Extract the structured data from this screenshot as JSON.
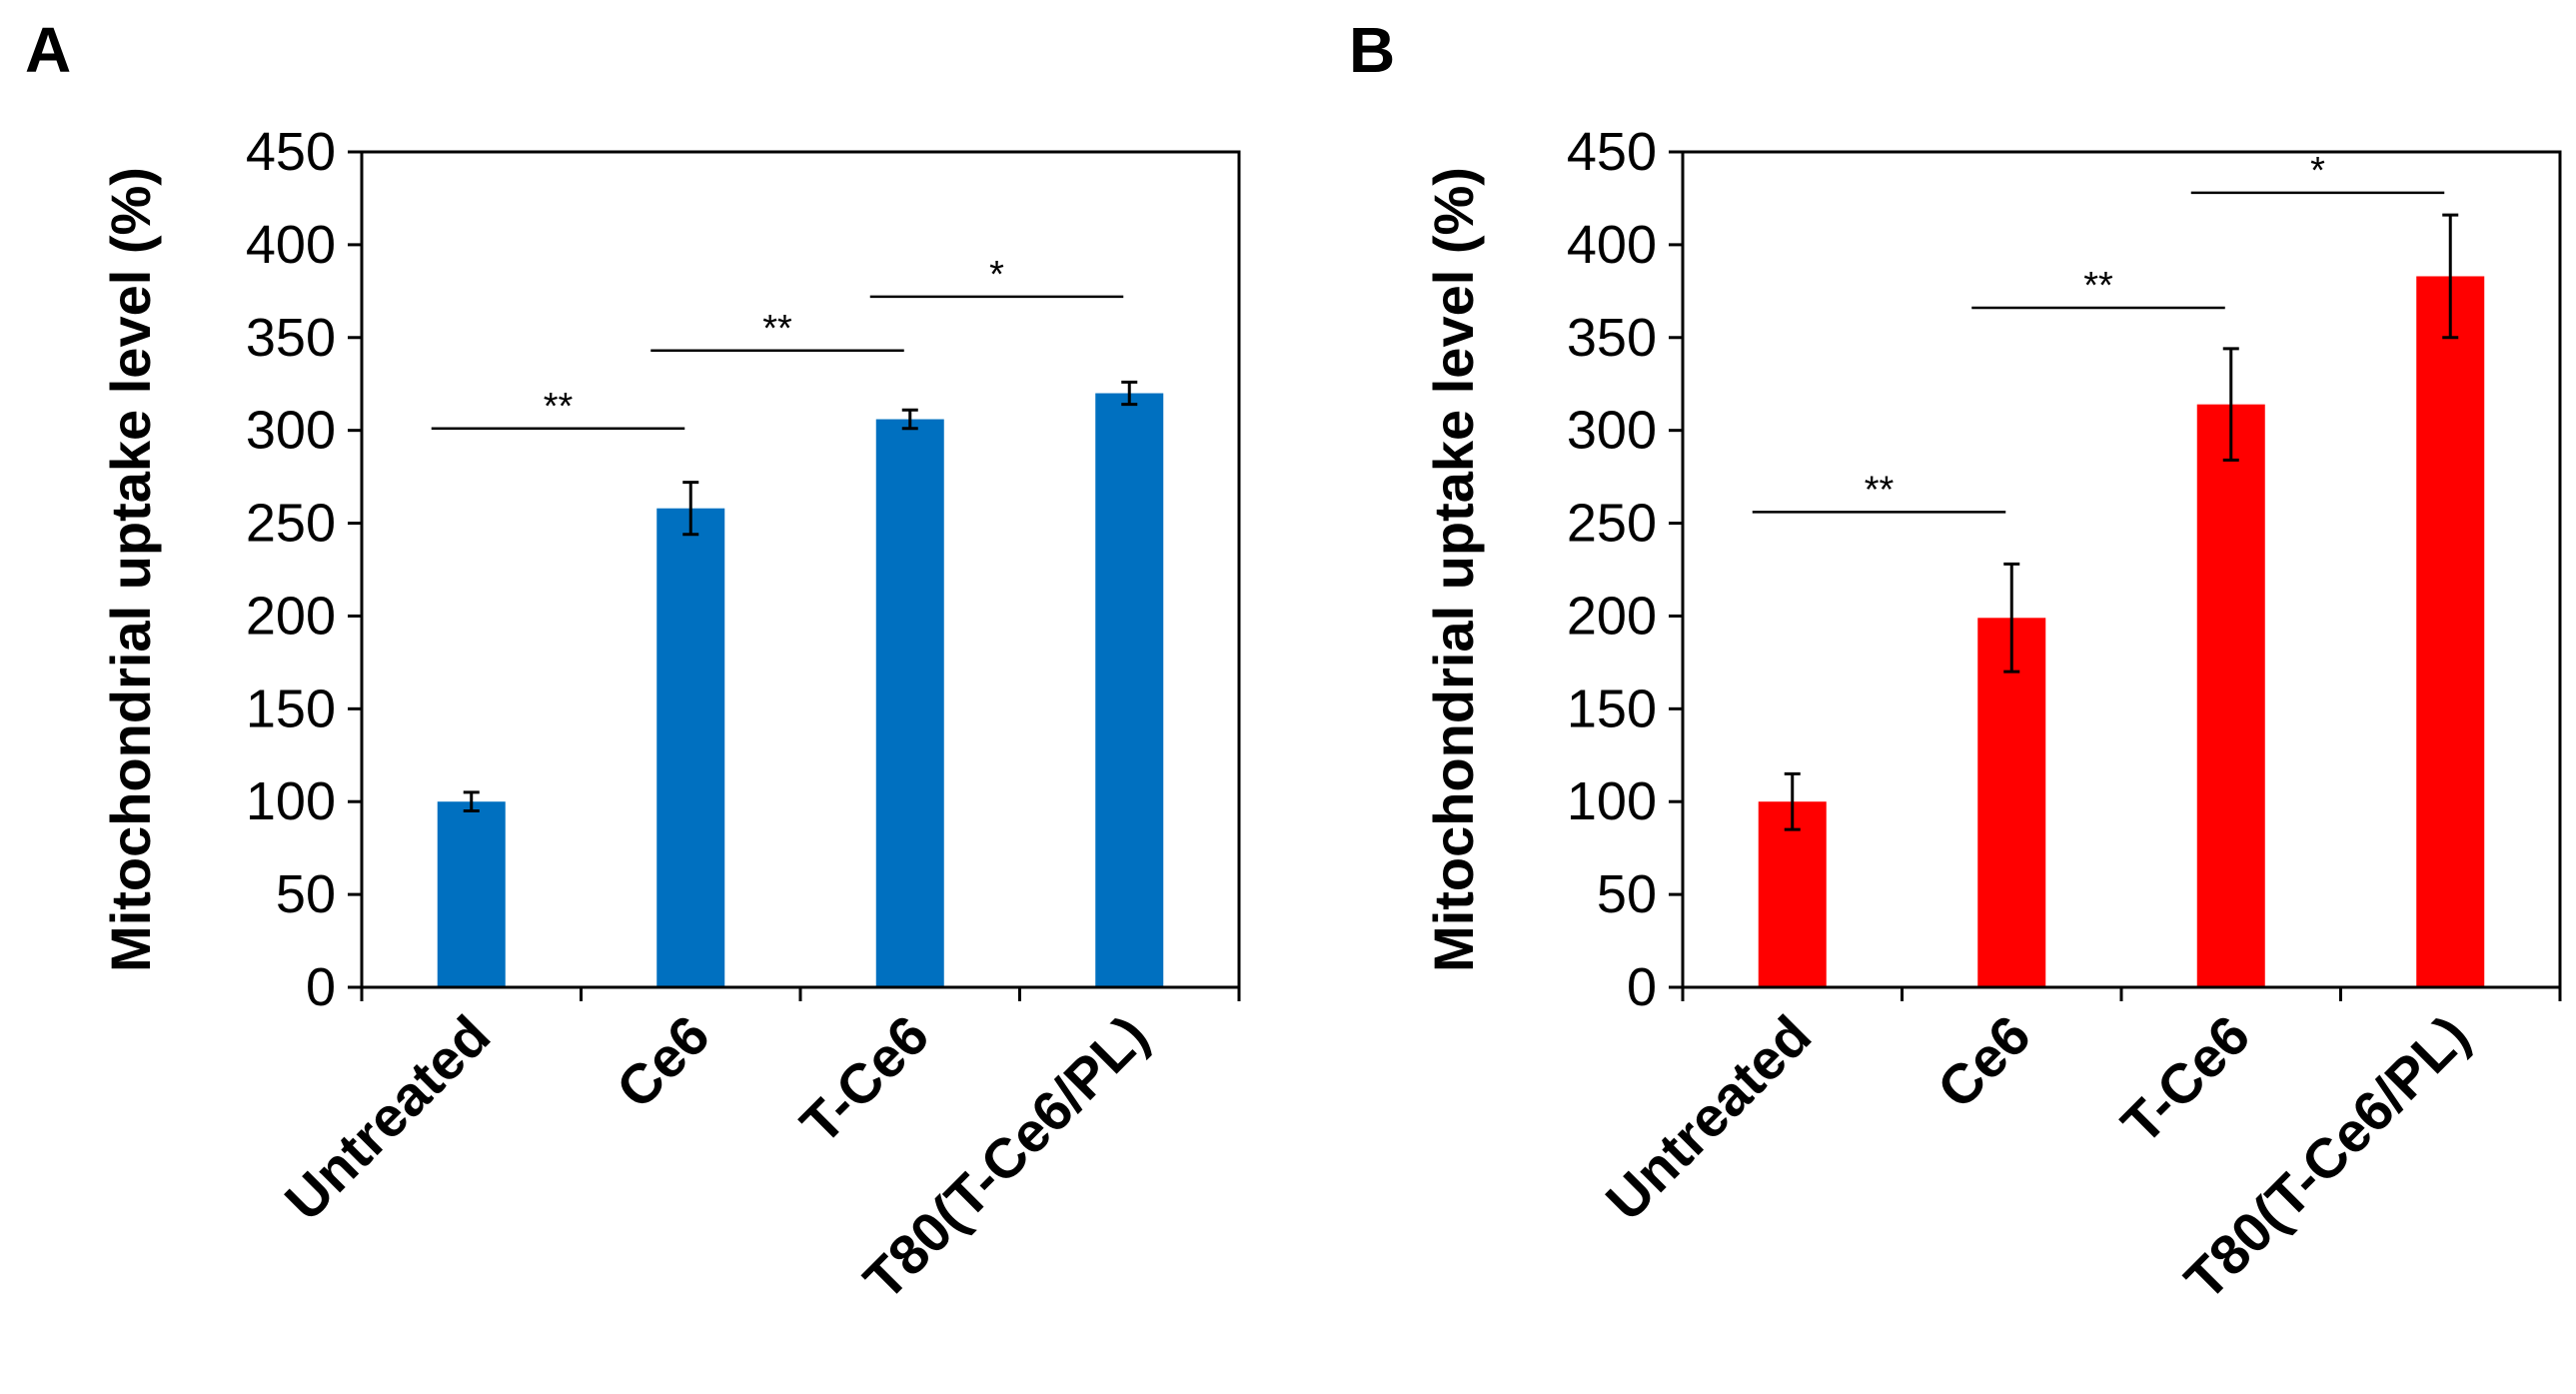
{
  "chart_data": [
    {
      "type": "bar",
      "panel": "A",
      "color": "#0070C0",
      "ylabel": "Mitochondrial uptake level (%)",
      "ylim": [
        0,
        450
      ],
      "yticks": [
        "0",
        "50",
        "100",
        "150",
        "200",
        "250",
        "300",
        "350",
        "400",
        "450"
      ],
      "categories": [
        "Untreated",
        "Ce6",
        "T-Ce6",
        "T80(T-Ce6/PL)"
      ],
      "values": [
        100,
        258,
        306,
        320
      ],
      "errors": [
        5,
        14,
        5,
        6
      ],
      "significance": [
        {
          "from": 0,
          "to": 1,
          "label": "**",
          "y": 301
        },
        {
          "from": 1,
          "to": 2,
          "label": "**",
          "y": 343
        },
        {
          "from": 2,
          "to": 3,
          "label": "*",
          "y": 372
        }
      ]
    },
    {
      "type": "bar",
      "panel": "B",
      "color": "#FF0000",
      "ylabel": "Mitochondrial uptake level (%)",
      "ylim": [
        0,
        450
      ],
      "yticks": [
        "0",
        "50",
        "100",
        "150",
        "200",
        "250",
        "300",
        "350",
        "400",
        "450"
      ],
      "categories": [
        "Untreated",
        "Ce6",
        "T-Ce6",
        "T80(T-Ce6/PL)"
      ],
      "values": [
        100,
        199,
        314,
        383
      ],
      "errors": [
        15,
        29,
        30,
        33
      ],
      "significance": [
        {
          "from": 0,
          "to": 1,
          "label": "**",
          "y": 256
        },
        {
          "from": 1,
          "to": 2,
          "label": "**",
          "y": 366
        },
        {
          "from": 2,
          "to": 3,
          "label": "*",
          "y": 428
        }
      ]
    }
  ]
}
